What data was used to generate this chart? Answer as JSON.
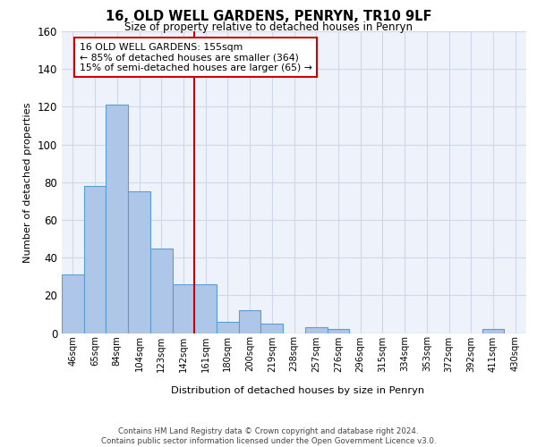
{
  "title": "16, OLD WELL GARDENS, PENRYN, TR10 9LF",
  "subtitle": "Size of property relative to detached houses in Penryn",
  "xlabel": "Distribution of detached houses by size in Penryn",
  "ylabel": "Number of detached properties",
  "bar_labels": [
    "46sqm",
    "65sqm",
    "84sqm",
    "104sqm",
    "123sqm",
    "142sqm",
    "161sqm",
    "180sqm",
    "200sqm",
    "219sqm",
    "238sqm",
    "257sqm",
    "276sqm",
    "296sqm",
    "315sqm",
    "334sqm",
    "353sqm",
    "372sqm",
    "392sqm",
    "411sqm",
    "430sqm"
  ],
  "bar_values": [
    31,
    78,
    121,
    75,
    45,
    26,
    26,
    6,
    12,
    5,
    0,
    3,
    2,
    0,
    0,
    0,
    0,
    0,
    0,
    2,
    0
  ],
  "bar_color": "#aec6e8",
  "bar_edge_color": "#5a9fd4",
  "vline_x_idx": 6,
  "vline_color": "#cc0000",
  "annotation_text": "16 OLD WELL GARDENS: 155sqm\n← 85% of detached houses are smaller (364)\n15% of semi-detached houses are larger (65) →",
  "annotation_box_color": "#ffffff",
  "annotation_box_edge_color": "#cc0000",
  "ylim": [
    0,
    160
  ],
  "yticks": [
    0,
    20,
    40,
    60,
    80,
    100,
    120,
    140,
    160
  ],
  "grid_color": "#d0d8e8",
  "bg_color": "#eef2fb",
  "footer": "Contains HM Land Registry data © Crown copyright and database right 2024.\nContains public sector information licensed under the Open Government Licence v3.0."
}
